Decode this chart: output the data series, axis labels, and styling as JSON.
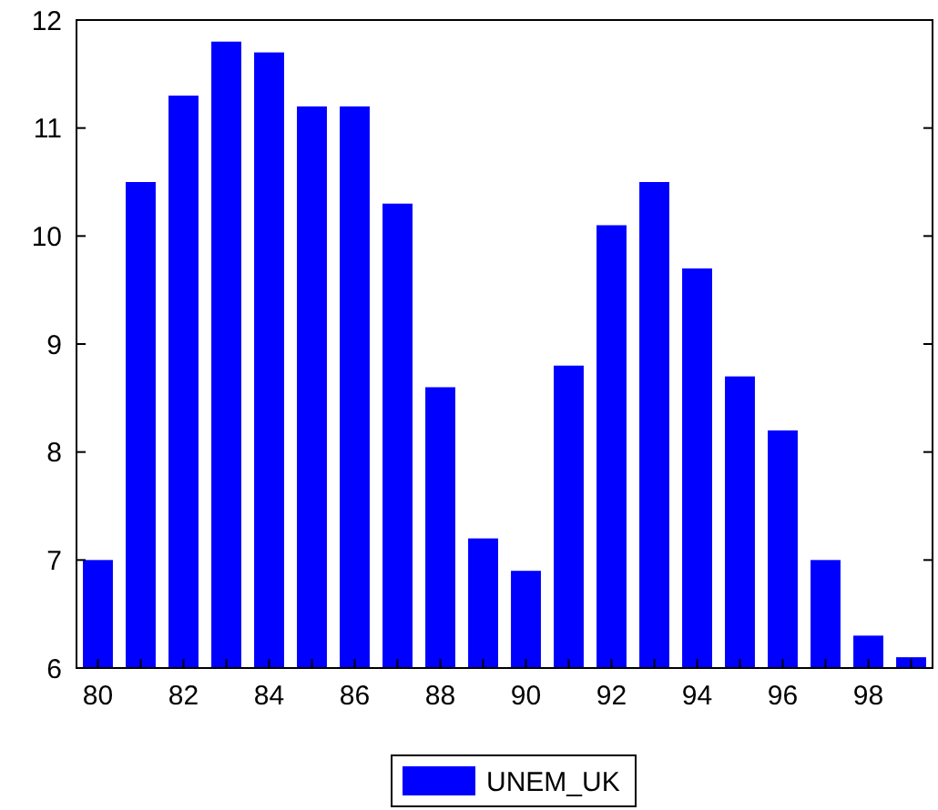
{
  "chart_data": {
    "type": "bar",
    "categories": [
      "80",
      null,
      "82",
      null,
      "84",
      null,
      "86",
      null,
      "88",
      null,
      "90",
      null,
      "92",
      null,
      "94",
      null,
      "96",
      null,
      "98",
      null
    ],
    "series": [
      {
        "name": "UNEM_UK",
        "color": "#0000ff",
        "values": [
          7.0,
          10.5,
          11.3,
          11.8,
          11.7,
          11.2,
          11.2,
          10.3,
          8.6,
          7.2,
          6.9,
          8.8,
          10.1,
          10.5,
          9.7,
          8.7,
          8.2,
          7.0,
          6.3,
          6.1
        ]
      }
    ],
    "ylim": [
      6,
      12
    ],
    "yticks": [
      6,
      7,
      8,
      9,
      10,
      11,
      12
    ],
    "grid": false,
    "legend": "bottom"
  }
}
